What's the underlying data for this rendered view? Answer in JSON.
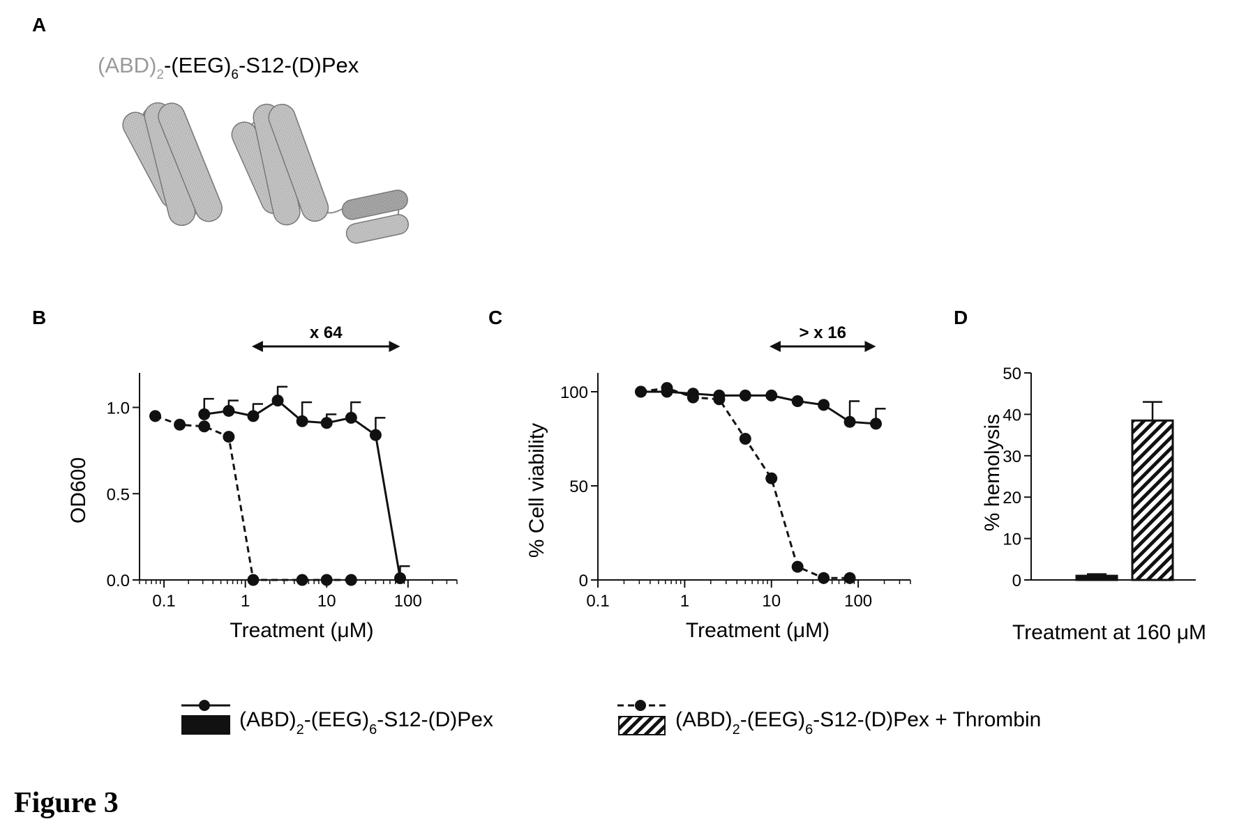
{
  "panels": {
    "a": {
      "letter": "A",
      "construct": {
        "label_grey": "(ABD)",
        "sub1": "2",
        "rest1": "-(EEG)",
        "sub2": "6",
        "rest2": "-S12-(D)Pex"
      }
    },
    "b": {
      "letter": "B",
      "arrow_label": "x 64"
    },
    "c": {
      "letter": "C",
      "arrow_label": ">  x 16"
    },
    "d": {
      "letter": "D",
      "xlabel": "Treatment at 160 μM"
    }
  },
  "legend": {
    "item1": {
      "a": "(ABD)",
      "s1": "2",
      "b": "-(EEG)",
      "s2": "6",
      "c": "-S12-(D)Pex"
    },
    "item2": {
      "a": "(ABD)",
      "s1": "2",
      "b": "-(EEG)",
      "s2": "6",
      "c": "-S12-(D)Pex + Thrombin"
    }
  },
  "figure_title": "Figure 3",
  "chart_data": [
    {
      "panel": "B",
      "type": "line",
      "xscale": "log",
      "xlim": [
        0.05,
        400
      ],
      "ylim": [
        0,
        1.2
      ],
      "xticks": [
        0.1,
        1,
        10,
        100
      ],
      "xtick_labels": [
        "0.1",
        "1",
        "10",
        "100"
      ],
      "yticks": [
        0,
        0.5,
        1.0
      ],
      "ytick_labels": [
        "0.0",
        "0.5",
        "1.0"
      ],
      "xlabel": "Treatment (μM)",
      "ylabel": "OD600",
      "arrow": {
        "from": 1.2,
        "to": 80
      },
      "series": [
        {
          "style": "solid",
          "x": [
            0.3125,
            0.625,
            1.25,
            2.5,
            5,
            10,
            20,
            40,
            80
          ],
          "y": [
            0.96,
            0.98,
            0.95,
            1.04,
            0.92,
            0.91,
            0.94,
            0.84,
            0.01
          ],
          "err": [
            0.09,
            0.06,
            0.07,
            0.08,
            0.11,
            0.05,
            0.09,
            0.1,
            0.07
          ]
        },
        {
          "style": "dashed",
          "x": [
            0.078,
            0.156,
            0.3125,
            0.625,
            1.25,
            5,
            10,
            20
          ],
          "y": [
            0.95,
            0.9,
            0.89,
            0.83,
            0.0,
            0.0,
            0.0,
            0.0
          ],
          "err": []
        }
      ]
    },
    {
      "panel": "C",
      "type": "line",
      "xscale": "log",
      "xlim": [
        0.1,
        400
      ],
      "ylim": [
        0,
        110
      ],
      "xticks": [
        0.1,
        1,
        10,
        100
      ],
      "xtick_labels": [
        "0.1",
        "1",
        "10",
        "100"
      ],
      "yticks": [
        0,
        50,
        100
      ],
      "ytick_labels": [
        "0",
        "50",
        "100"
      ],
      "xlabel": "Treatment (μM)",
      "ylabel": "% Cell viability",
      "arrow": {
        "from": 9.5,
        "to": 160
      },
      "series": [
        {
          "style": "solid",
          "x": [
            0.3125,
            0.625,
            1.25,
            2.5,
            5,
            10,
            20,
            40,
            80,
            160
          ],
          "y": [
            100,
            100,
            99,
            98,
            98,
            98,
            95,
            93,
            84,
            83
          ],
          "err": [
            0,
            0,
            0,
            0,
            0,
            0,
            0,
            0,
            11,
            8
          ]
        },
        {
          "style": "dashed",
          "x": [
            0.3125,
            0.625,
            1.25,
            2.5,
            5,
            10,
            20,
            40,
            80
          ],
          "y": [
            100,
            102,
            97,
            96,
            75,
            54,
            7,
            1,
            1
          ],
          "err": []
        }
      ]
    },
    {
      "panel": "D",
      "type": "bar",
      "ylim": [
        0,
        50
      ],
      "yticks": [
        0,
        10,
        20,
        30,
        40,
        50
      ],
      "ytick_labels": [
        "0",
        "10",
        "20",
        "30",
        "40",
        "50"
      ],
      "ylabel": "% hemolysis",
      "xlabel": "Treatment at 160 μM",
      "values": [
        1.0,
        38.5
      ],
      "err": [
        0.4,
        4.5
      ],
      "fills": [
        "solid",
        "hatched"
      ]
    }
  ]
}
